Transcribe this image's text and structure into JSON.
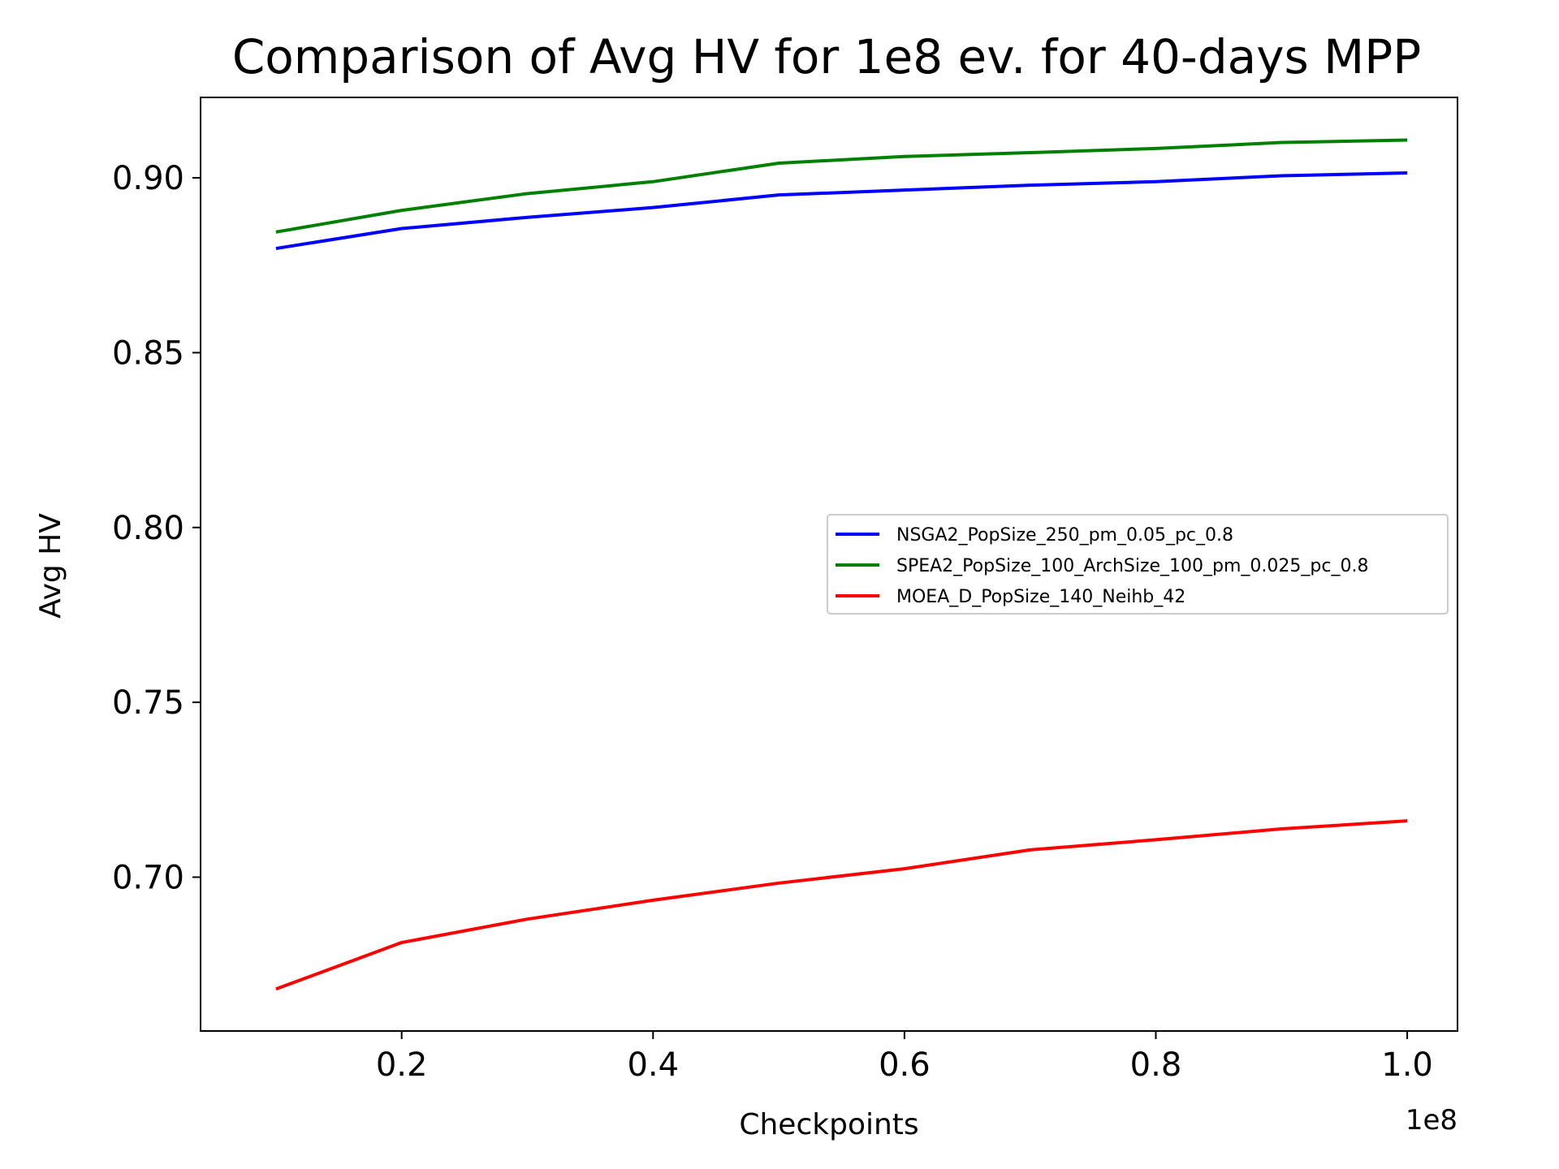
{
  "chart_data": {
    "type": "line",
    "title": "Comparison of Avg HV for 1e8 ev. for 40-days MPP",
    "xlabel": "Checkpoints",
    "ylabel": "Avg HV",
    "x_offset_label": "1e8",
    "x_scale": 100000000,
    "xlim": [
      4000000,
      104000000
    ],
    "ylim": [
      0.656,
      0.923
    ],
    "grid": false,
    "legend_position": "center-right",
    "x_ticks": [
      20000000,
      40000000,
      60000000,
      80000000,
      100000000
    ],
    "x_tick_labels": [
      "0.2",
      "0.4",
      "0.6",
      "0.8",
      "1.0"
    ],
    "y_ticks": [
      0.7,
      0.75,
      0.8,
      0.85,
      0.9
    ],
    "y_tick_labels": [
      "0.70",
      "0.75",
      "0.80",
      "0.85",
      "0.90"
    ],
    "x": [
      10000000,
      20000000,
      30000000,
      40000000,
      50000000,
      60000000,
      70000000,
      80000000,
      90000000,
      100000000
    ],
    "series": [
      {
        "name": "NSGA2_PopSize_250_pm_0.05_pc_0.8",
        "color": "#0000ff",
        "values": [
          0.8798,
          0.8855,
          0.8887,
          0.8915,
          0.8951,
          0.8965,
          0.8979,
          0.8989,
          0.9006,
          0.9014
        ]
      },
      {
        "name": "SPEA2_PopSize_100_ArchSize_100_pm_0.025_pc_0.8",
        "color": "#008000",
        "values": [
          0.8845,
          0.8907,
          0.8955,
          0.8989,
          0.9042,
          0.9061,
          0.9072,
          0.9084,
          0.9101,
          0.9108
        ]
      },
      {
        "name": "MOEA_D_PopSize_140_Neihb_42",
        "color": "#ff0000",
        "values": [
          0.668,
          0.6813,
          0.688,
          0.6934,
          0.6983,
          0.7024,
          0.7078,
          0.7107,
          0.7138,
          0.7161
        ]
      }
    ]
  }
}
